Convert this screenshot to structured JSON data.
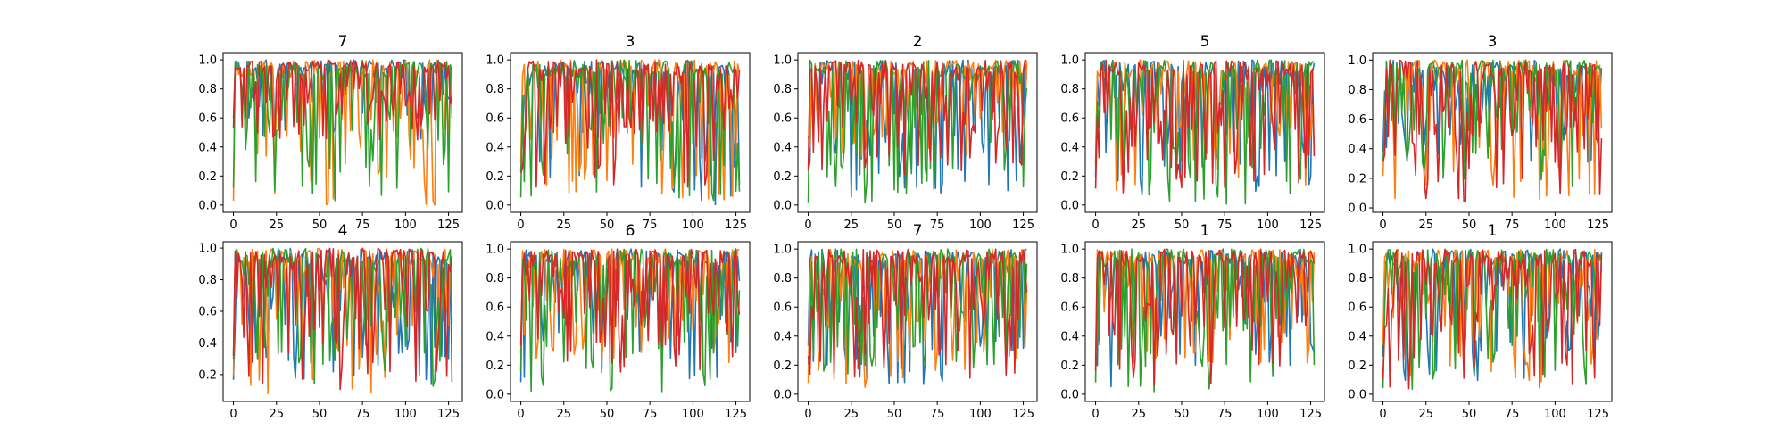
{
  "chart_data": [
    {
      "type": "line",
      "title": "7",
      "x_ticks": [
        "0",
        "25",
        "50",
        "75",
        "100",
        "125"
      ],
      "y_ticks": [
        "0.0",
        "0.2",
        "0.4",
        "0.6",
        "0.8",
        "1.0"
      ],
      "xlim": [
        -6,
        133
      ],
      "ylim": [
        -0.05,
        1.05
      ],
      "grid": false,
      "n_points": 128,
      "series_colors": [
        "#1f77b4",
        "#ff7f0e",
        "#2ca02c",
        "#d62728"
      ],
      "series_min": [
        0.45,
        0.0,
        0.03,
        0.45
      ],
      "series_max": [
        1.0,
        1.0,
        1.0,
        1.0
      ]
    },
    {
      "type": "line",
      "title": "3",
      "x_ticks": [
        "0",
        "25",
        "50",
        "75",
        "100",
        "125"
      ],
      "y_ticks": [
        "0.0",
        "0.2",
        "0.4",
        "0.6",
        "0.8",
        "1.0"
      ],
      "xlim": [
        -6,
        133
      ],
      "ylim": [
        -0.05,
        1.05
      ],
      "grid": false,
      "n_points": 128,
      "series_colors": [
        "#1f77b4",
        "#ff7f0e",
        "#2ca02c",
        "#d62728"
      ],
      "series_min": [
        0.0,
        0.0,
        0.0,
        0.12
      ],
      "series_max": [
        1.0,
        1.0,
        1.0,
        1.0
      ]
    },
    {
      "type": "line",
      "title": "2",
      "x_ticks": [
        "0",
        "25",
        "50",
        "75",
        "100",
        "125"
      ],
      "y_ticks": [
        "0.0",
        "0.2",
        "0.4",
        "0.6",
        "0.8",
        "1.0"
      ],
      "xlim": [
        -6,
        133
      ],
      "ylim": [
        -0.05,
        1.05
      ],
      "grid": false,
      "n_points": 128,
      "series_colors": [
        "#1f77b4",
        "#ff7f0e",
        "#2ca02c",
        "#d62728"
      ],
      "series_min": [
        0.05,
        0.3,
        0.0,
        0.18
      ],
      "series_max": [
        1.0,
        1.0,
        1.0,
        1.0
      ]
    },
    {
      "type": "line",
      "title": "5",
      "x_ticks": [
        "0",
        "25",
        "50",
        "75",
        "100",
        "125"
      ],
      "y_ticks": [
        "0.0",
        "0.2",
        "0.4",
        "0.6",
        "0.8",
        "1.0"
      ],
      "xlim": [
        -6,
        133
      ],
      "ylim": [
        -0.05,
        1.05
      ],
      "grid": false,
      "n_points": 128,
      "series_colors": [
        "#1f77b4",
        "#ff7f0e",
        "#2ca02c",
        "#d62728"
      ],
      "series_min": [
        0.05,
        0.1,
        0.0,
        0.08
      ],
      "series_max": [
        1.0,
        1.0,
        1.0,
        1.0
      ]
    },
    {
      "type": "line",
      "title": "3",
      "x_ticks": [
        "0",
        "25",
        "50",
        "75",
        "100",
        "125"
      ],
      "y_ticks": [
        "0.0",
        "0.2",
        "0.4",
        "0.6",
        "0.8",
        "1.0"
      ],
      "xlim": [
        -6,
        133
      ],
      "ylim": [
        -0.03,
        1.05
      ],
      "grid": false,
      "n_points": 128,
      "series_colors": [
        "#1f77b4",
        "#ff7f0e",
        "#2ca02c",
        "#d62728"
      ],
      "series_min": [
        0.3,
        0.05,
        0.1,
        0.02
      ],
      "series_max": [
        1.0,
        1.0,
        1.0,
        1.0
      ]
    },
    {
      "type": "line",
      "title": "4",
      "x_ticks": [
        "0",
        "25",
        "50",
        "75",
        "100",
        "125"
      ],
      "y_ticks": [
        "0.2",
        "0.4",
        "0.6",
        "0.8",
        "1.0"
      ],
      "xlim": [
        -6,
        133
      ],
      "ylim": [
        0.03,
        1.04
      ],
      "grid": false,
      "n_points": 128,
      "series_colors": [
        "#1f77b4",
        "#ff7f0e",
        "#2ca02c",
        "#d62728"
      ],
      "series_min": [
        0.1,
        0.07,
        0.12,
        0.08
      ],
      "series_max": [
        1.0,
        1.0,
        1.0,
        1.0
      ]
    },
    {
      "type": "line",
      "title": "6",
      "x_ticks": [
        "0",
        "25",
        "50",
        "75",
        "100",
        "125"
      ],
      "y_ticks": [
        "0.0",
        "0.2",
        "0.4",
        "0.6",
        "0.8",
        "1.0"
      ],
      "xlim": [
        -6,
        133
      ],
      "ylim": [
        -0.05,
        1.05
      ],
      "grid": false,
      "n_points": 128,
      "series_colors": [
        "#1f77b4",
        "#ff7f0e",
        "#2ca02c",
        "#d62728"
      ],
      "series_min": [
        0.05,
        0.2,
        0.0,
        0.15
      ],
      "series_max": [
        1.0,
        1.0,
        1.0,
        1.0
      ]
    },
    {
      "type": "line",
      "title": "7",
      "x_ticks": [
        "0",
        "25",
        "50",
        "75",
        "100",
        "125"
      ],
      "y_ticks": [
        "0.0",
        "0.2",
        "0.4",
        "0.6",
        "0.8",
        "1.0"
      ],
      "xlim": [
        -6,
        133
      ],
      "ylim": [
        -0.05,
        1.05
      ],
      "grid": false,
      "n_points": 128,
      "series_colors": [
        "#1f77b4",
        "#ff7f0e",
        "#2ca02c",
        "#d62728"
      ],
      "series_min": [
        0.05,
        0.02,
        0.1,
        0.1
      ],
      "series_max": [
        1.0,
        1.0,
        1.0,
        1.0
      ]
    },
    {
      "type": "line",
      "title": "1",
      "x_ticks": [
        "0",
        "25",
        "50",
        "75",
        "100",
        "125"
      ],
      "y_ticks": [
        "0.0",
        "0.2",
        "0.4",
        "0.6",
        "0.8",
        "1.0"
      ],
      "xlim": [
        -6,
        133
      ],
      "ylim": [
        -0.05,
        1.05
      ],
      "grid": false,
      "n_points": 128,
      "series_colors": [
        "#1f77b4",
        "#ff7f0e",
        "#2ca02c",
        "#d62728"
      ],
      "series_min": [
        0.05,
        0.2,
        0.0,
        0.02
      ],
      "series_max": [
        1.0,
        1.0,
        1.0,
        1.0
      ]
    },
    {
      "type": "line",
      "title": "1",
      "x_ticks": [
        "0",
        "25",
        "50",
        "75",
        "100",
        "125"
      ],
      "y_ticks": [
        "0.0",
        "0.2",
        "0.4",
        "0.6",
        "0.8",
        "1.0"
      ],
      "xlim": [
        -6,
        133
      ],
      "ylim": [
        -0.05,
        1.05
      ],
      "grid": false,
      "n_points": 128,
      "series_colors": [
        "#1f77b4",
        "#ff7f0e",
        "#2ca02c",
        "#d62728"
      ],
      "series_min": [
        0.05,
        0.08,
        0.0,
        0.0
      ],
      "series_max": [
        1.0,
        1.0,
        1.0,
        1.0
      ]
    }
  ]
}
